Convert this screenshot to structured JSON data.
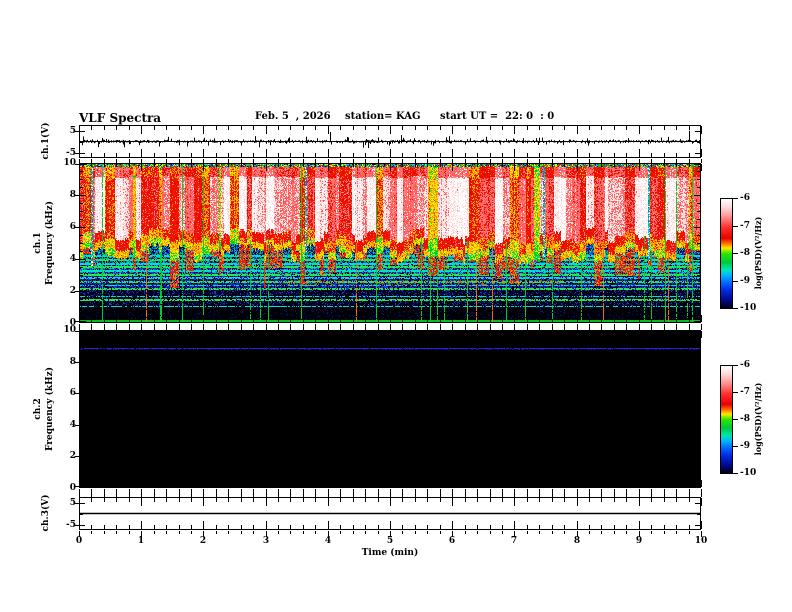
{
  "header": {
    "title": "VLF Spectra",
    "date": "Feb. 5  , 2026",
    "station": "station= KAG",
    "start_ut": "start UT =  22: 0  : 0"
  },
  "x_axis": {
    "label": "Time (min)",
    "min": 0,
    "max": 10,
    "major_ticks": [
      0,
      1,
      2,
      3,
      4,
      5,
      6,
      7,
      8,
      9,
      10
    ],
    "tick_labels": [
      "0",
      "1",
      "2",
      "3",
      "4",
      "5",
      "6",
      "7",
      "8",
      "9",
      "10"
    ],
    "minor_step": 0.2
  },
  "freq_axis": {
    "label": "Frequency (kHz)",
    "min": 0,
    "max": 10,
    "major_ticks": [
      0,
      2,
      4,
      6,
      8,
      10
    ],
    "tick_labels": [
      "0",
      "2",
      "4",
      "6",
      "8",
      "10"
    ],
    "minor_step": 0.5
  },
  "volt_axis": {
    "min": -7.5,
    "max": 7.5,
    "major_ticks": [
      5,
      -5
    ],
    "tick_labels": [
      "5",
      "-5"
    ]
  },
  "panels": [
    {
      "id": "ch1v",
      "label_lines": [
        "ch.1(V)"
      ]
    },
    {
      "id": "ch1spec",
      "label_lines": [
        "ch.1",
        "Frequency (kHz)"
      ]
    },
    {
      "id": "ch2spec",
      "label_lines": [
        "ch.2",
        "Frequency (kHz)"
      ]
    },
    {
      "id": "ch3v",
      "label_lines": [
        "ch.3(V)"
      ]
    }
  ],
  "colorbar": {
    "label": "log(PSD)(V²/Hz)",
    "ticks": [
      -6,
      -7,
      -8,
      -9,
      -10
    ],
    "tick_labels": [
      "-6",
      "-7",
      "-8",
      "-9",
      "-10"
    ],
    "gradient_stops": [
      [
        "#ffffff",
        0
      ],
      [
        "#ffdddd",
        7
      ],
      [
        "#ff9494",
        16
      ],
      [
        "#ff3030",
        26
      ],
      [
        "#e60000",
        36
      ],
      [
        "#ff7300",
        41
      ],
      [
        "#ffe800",
        45
      ],
      [
        "#2ee600",
        50
      ],
      [
        "#00c83c",
        58
      ],
      [
        "#00e6b4",
        65
      ],
      [
        "#00b4ff",
        70
      ],
      [
        "#0064ff",
        77
      ],
      [
        "#0028dc",
        84
      ],
      [
        "#000a96",
        92
      ],
      [
        "#000014",
        100
      ]
    ]
  },
  "chart_data": [
    {
      "type": "line",
      "panel": "ch.1(V) waveform",
      "x_range_min": [
        0,
        10
      ],
      "y_range_V": [
        -7.5,
        7.5
      ],
      "baseline_V": 0,
      "noise_V": 0.45,
      "spikes": [
        {
          "t_min": 0.95,
          "amp_V": -1.8
        },
        {
          "t_min": 1.28,
          "amp_V": -2.4
        },
        {
          "t_min": 2.6,
          "amp_V": -1.9
        },
        {
          "t_min": 4.04,
          "amp_V": 4.6
        },
        {
          "t_min": 4.3,
          "amp_V": 2.2
        },
        {
          "t_min": 4.56,
          "amp_V": -3.0
        },
        {
          "t_min": 5.95,
          "amp_V": 2.6
        },
        {
          "t_min": 6.55,
          "amp_V": 2.3
        },
        {
          "t_min": 8.2,
          "amp_V": -2.0
        },
        {
          "t_min": 9.82,
          "amp_V": 5.2
        }
      ]
    },
    {
      "type": "heatmap",
      "panel": "ch.1 spectrogram",
      "x_range_min": [
        0,
        10
      ],
      "freq_range_kHz": [
        0,
        10
      ],
      "psd_log_scale": [
        -10,
        -6
      ],
      "bands": [
        {
          "freq_kHz": [
            5,
            10
          ],
          "log_psd": -6.2,
          "appearance": "saturated white/red vertical streaks"
        },
        {
          "freq_kHz": [
            4.2,
            5
          ],
          "log_psd": -7.2,
          "appearance": "red/orange/yellow ragged streak bottoms"
        },
        {
          "freq_kHz": [
            3,
            4.2
          ],
          "log_psd": -8.2,
          "appearance": "green/cyan dashes on dark blue"
        },
        {
          "freq_kHz": [
            1.5,
            3
          ],
          "log_psd": -9.0,
          "appearance": "blue speckle on black with cyan interference lines"
        },
        {
          "freq_kHz": [
            0,
            1.5
          ],
          "log_psd": -9.8,
          "appearance": "near-black, sparse dim blue"
        }
      ],
      "interference_lines_kHz": [
        0.95,
        1.35,
        1.6,
        2.05,
        2.3,
        2.5,
        2.75,
        2.95,
        3.2,
        3.45,
        3.65,
        3.9,
        4.15
      ],
      "bottom_edge_line_kHz": 0
    },
    {
      "type": "heatmap",
      "panel": "ch.2 spectrogram",
      "x_range_min": [
        0,
        10
      ],
      "freq_range_kHz": [
        0,
        10
      ],
      "psd_log_scale": [
        -10,
        -6
      ],
      "bands": [
        {
          "freq_kHz": [
            0,
            10
          ],
          "log_psd": -10,
          "appearance": "black, no signal"
        }
      ],
      "interference_lines_kHz": [
        8.9
      ]
    },
    {
      "type": "line",
      "panel": "ch.3(V) waveform",
      "x_range_min": [
        0,
        10
      ],
      "y_range_V": [
        -7.5,
        7.5
      ],
      "baseline_V": 0,
      "noise_V": 0,
      "spikes": []
    }
  ]
}
